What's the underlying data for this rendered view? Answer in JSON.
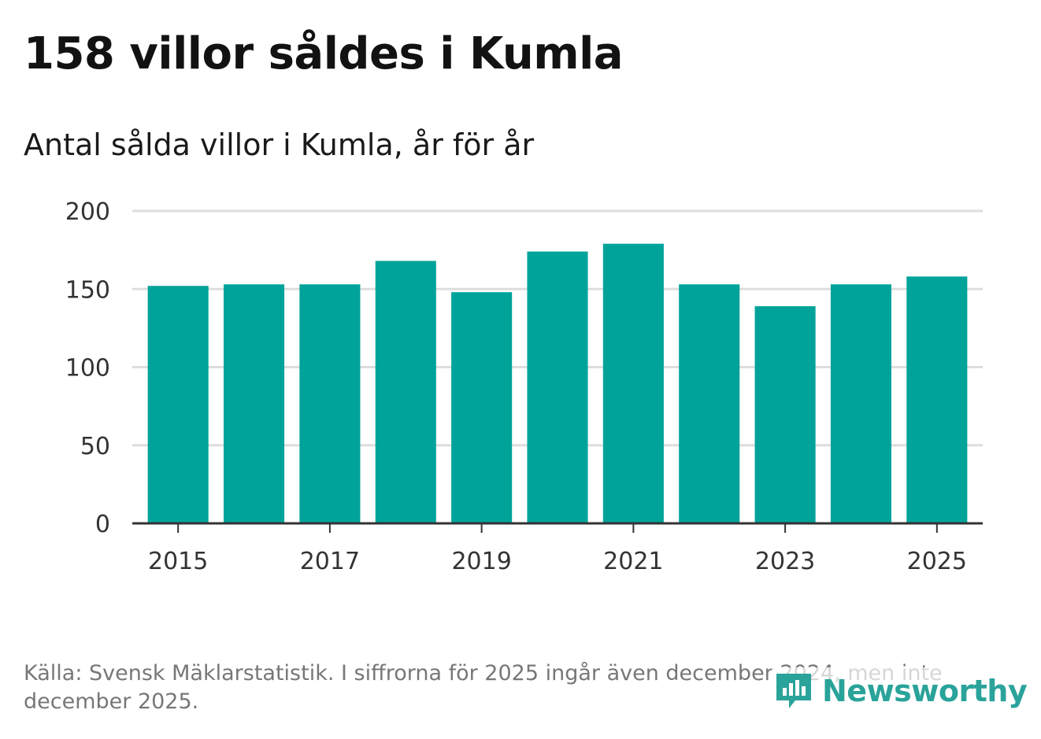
{
  "title": "158 villor såldes i Kumla",
  "subtitle": "Antal sålda villor i Kumla, år för år",
  "footnote": "Källa: Svensk Mäklarstatistik. I siffrorna för 2025 ingår även december 2024, men inte december 2025.",
  "brand": {
    "name": "Newsworthy",
    "color": "#2aa39a",
    "icon": "newsworthy-logo-icon"
  },
  "colors": {
    "bar": "#00a39a",
    "grid": "#dddddd",
    "axis": "#333333"
  },
  "chart_data": {
    "type": "bar",
    "categories": [
      "2015",
      "2016",
      "2017",
      "2018",
      "2019",
      "2020",
      "2021",
      "2022",
      "2023",
      "2024",
      "2025"
    ],
    "values": [
      152,
      153,
      153,
      168,
      148,
      174,
      179,
      153,
      139,
      153,
      158
    ],
    "x_tick_labels": [
      "2015",
      "2017",
      "2019",
      "2021",
      "2023",
      "2025"
    ],
    "y_ticks": [
      0,
      50,
      100,
      150,
      200
    ],
    "ylim": [
      0,
      200
    ],
    "grid": true,
    "legend": "none"
  }
}
